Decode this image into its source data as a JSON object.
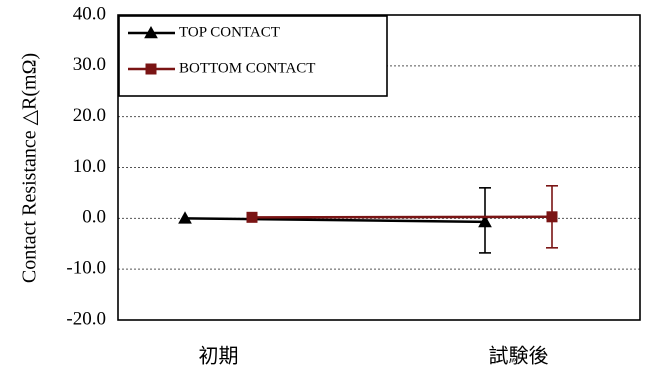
{
  "chart_data": {
    "type": "line",
    "title": "",
    "ylabel": "Contact Resistance  △R(mΩ)",
    "xlabel": "",
    "ylim": [
      -20,
      40
    ],
    "yticks": [
      -20,
      -10,
      0,
      10,
      20,
      30,
      40
    ],
    "ytick_labels": [
      "-20.0",
      "-10.0",
      "0.0",
      "10.0",
      "20.0",
      "30.0",
      "40.0"
    ],
    "categories": [
      "初期",
      "試験後"
    ],
    "grid": "horizontal dashed",
    "legend_position": "top-left",
    "series": [
      {
        "name": "TOP CONTACT",
        "color": "#000000",
        "marker": "triangle",
        "values": [
          0.0,
          -0.7
        ],
        "error_low": [
          0.0,
          -6.8
        ],
        "error_high": [
          0.0,
          6.0
        ]
      },
      {
        "name": "BOTTOM CONTACT",
        "color": "#7a1414",
        "marker": "square",
        "values": [
          0.2,
          0.3
        ],
        "error_low": [
          0.2,
          -5.8
        ],
        "error_high": [
          0.2,
          6.4
        ]
      }
    ]
  }
}
